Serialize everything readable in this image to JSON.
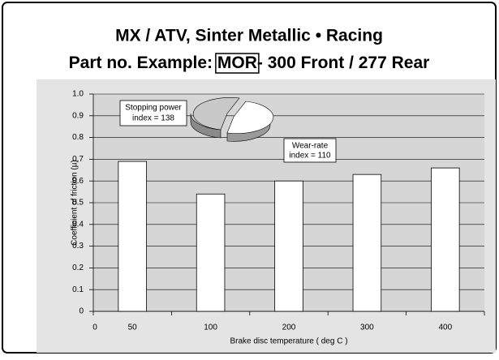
{
  "chart_data": {
    "type": "bar",
    "title": "MX / ATV, Sinter Metallic • Racing",
    "subtitle_parts": [
      "Part no. Example: ",
      "MOR",
      "- 300 Front / 277 Rear"
    ],
    "categories": [
      "50",
      "100",
      "200",
      "300",
      "400"
    ],
    "values": [
      0.69,
      0.54,
      0.6,
      0.63,
      0.66
    ],
    "color": "#ffffff",
    "x_origin_label": "0",
    "x_label": "Brake disc temperature ( deg C )",
    "y_label": "Coefficient of friction (µ)",
    "ylim": [
      0,
      1
    ],
    "yticks": [
      0,
      0.1,
      0.2,
      0.3,
      0.4,
      0.5,
      0.6,
      0.7,
      0.8,
      0.9,
      {
        "value": 1,
        "label": "1.0"
      }
    ],
    "grid": true,
    "annotations": [
      [
        "Stopping power",
        "index = 138"
      ],
      [
        "Wear-rate",
        "index = 110"
      ]
    ]
  }
}
